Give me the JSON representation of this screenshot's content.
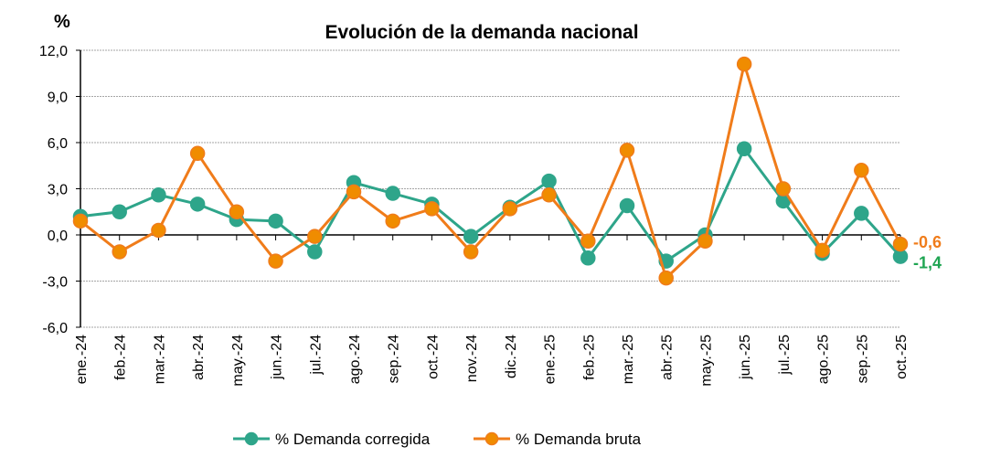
{
  "chart_data": {
    "type": "line",
    "title": "Evolución de la demanda nacional",
    "ylabel": "%",
    "xlabel": "",
    "ylim": [
      -6.0,
      12.0
    ],
    "yticks": [
      -6.0,
      -3.0,
      0.0,
      3.0,
      6.0,
      9.0,
      12.0
    ],
    "ytick_labels": [
      "-6,0",
      "-3,0",
      "0,0",
      "3,0",
      "6,0",
      "9,0",
      "12,0"
    ],
    "grid": "horizontal-dotted",
    "legend_position": "bottom",
    "categories": [
      "ene.-24",
      "feb.-24",
      "mar.-24",
      "abr.-24",
      "may.-24",
      "jun.-24",
      "jul.-24",
      "ago.-24",
      "sep.-24",
      "oct.-24",
      "nov.-24",
      "dic.-24",
      "ene.-25",
      "feb.-25",
      "mar.-25",
      "abr.-25",
      "may.-25",
      "jun.-25",
      "jul.-25",
      "ago.-25",
      "sep.-25",
      "oct.-25"
    ],
    "series": [
      {
        "name": "% Demanda corregida",
        "color": "#2EA58A",
        "label_color": "#1FA552",
        "values": [
          1.2,
          1.5,
          2.6,
          2.0,
          1.0,
          0.9,
          -1.1,
          3.4,
          2.7,
          2.0,
          -0.1,
          1.8,
          3.5,
          -1.5,
          1.9,
          -1.7,
          0.0,
          5.6,
          2.2,
          -1.2,
          1.4,
          -1.4
        ],
        "end_label": "-1,4"
      },
      {
        "name": "% Demanda bruta",
        "color": "#F07C1A",
        "label_color": "#F07C1A",
        "values": [
          0.9,
          -1.1,
          0.3,
          5.3,
          1.5,
          -1.7,
          -0.1,
          2.8,
          0.9,
          1.7,
          -1.1,
          1.7,
          2.6,
          -0.4,
          5.5,
          -2.8,
          -0.4,
          11.1,
          3.0,
          -1.0,
          4.2,
          -0.6
        ],
        "end_label": "-0,6"
      }
    ]
  }
}
